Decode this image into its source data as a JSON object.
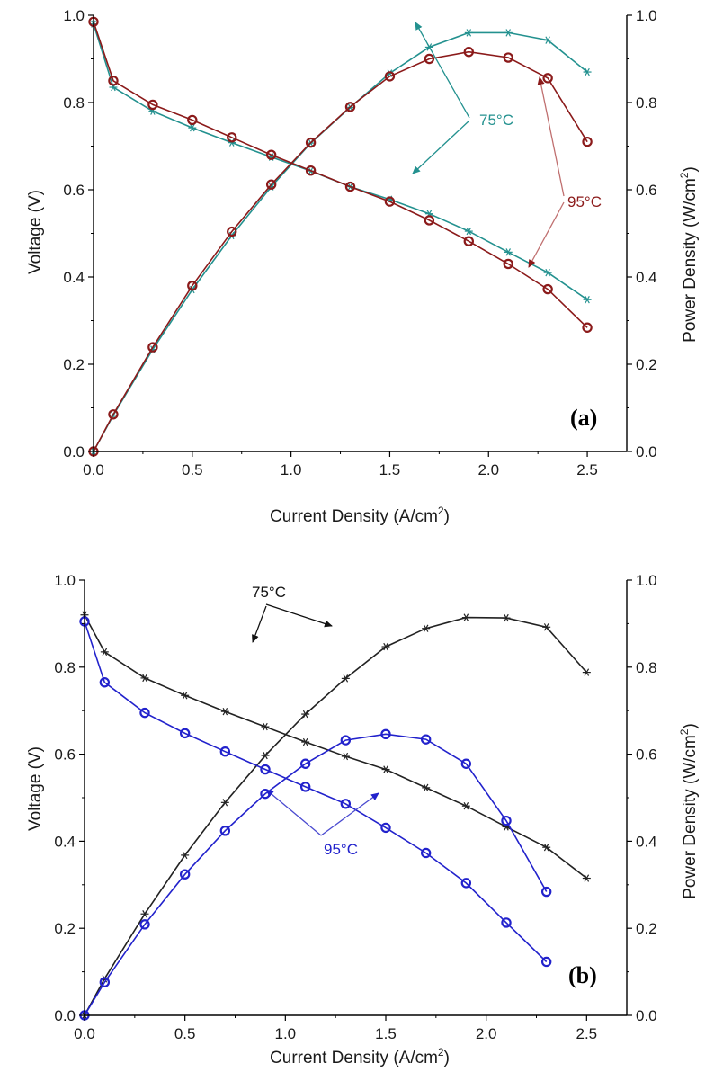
{
  "colors": {
    "a_75": "#23918f",
    "a_95": "#8b1a1a",
    "a_95_arrow": "#c07070",
    "b_75": "#222222",
    "b_95": "#2222cc",
    "b_95_arrow": "#4a4ad0",
    "axis": "#000000"
  },
  "chart_data": [
    {
      "type": "line",
      "panel_label": "(a)",
      "xlabel": "Current Density (A/cm",
      "xlabel_sup": "2",
      "xlabel_end": ")",
      "ylabel": "Voltage (V)",
      "y2label": "Power Density (W/cm",
      "y2label_sup": "2",
      "y2label_end": ")",
      "xlim": [
        0,
        2.7
      ],
      "ylim": [
        0,
        1.0
      ],
      "y2lim": [
        0,
        1.0
      ],
      "xticks": [
        "0.0",
        "0.5",
        "1.0",
        "1.5",
        "2.0",
        "2.5"
      ],
      "yticks": [
        "0.0",
        "0.2",
        "0.4",
        "0.6",
        "0.8",
        "1.0"
      ],
      "y2ticks": [
        "0.0",
        "0.2",
        "0.4",
        "0.6",
        "0.8",
        "1.0"
      ],
      "grid": false,
      "annotations": [
        "75°C",
        "95°C"
      ],
      "series": [
        {
          "temp": "75°C",
          "kind": "voltage",
          "marker": "asterisk",
          "color_key": "a_75",
          "x": [
            0.0,
            0.1,
            0.3,
            0.5,
            0.7,
            0.9,
            1.1,
            1.3,
            1.5,
            1.7,
            1.9,
            2.1,
            2.3,
            2.5
          ],
          "y": [
            0.98,
            0.835,
            0.78,
            0.742,
            0.708,
            0.675,
            0.643,
            0.607,
            0.578,
            0.545,
            0.505,
            0.457,
            0.41,
            0.348
          ]
        },
        {
          "temp": "75°C",
          "kind": "power",
          "marker": "asterisk",
          "color_key": "a_75",
          "x": [
            0.0,
            0.1,
            0.3,
            0.5,
            0.7,
            0.9,
            1.1,
            1.3,
            1.5,
            1.7,
            1.9,
            2.1,
            2.3,
            2.5
          ],
          "y": [
            0.0,
            0.083,
            0.234,
            0.371,
            0.495,
            0.607,
            0.707,
            0.789,
            0.867,
            0.927,
            0.96,
            0.96,
            0.943,
            0.87
          ]
        },
        {
          "temp": "95°C",
          "kind": "voltage",
          "marker": "circle",
          "color_key": "a_95",
          "x": [
            0.0,
            0.1,
            0.3,
            0.5,
            0.7,
            0.9,
            1.1,
            1.3,
            1.5,
            1.7,
            1.9,
            2.1,
            2.3,
            2.5
          ],
          "y": [
            0.985,
            0.85,
            0.795,
            0.76,
            0.72,
            0.68,
            0.644,
            0.607,
            0.573,
            0.53,
            0.482,
            0.43,
            0.372,
            0.284
          ]
        },
        {
          "temp": "95°C",
          "kind": "power",
          "marker": "circle",
          "color_key": "a_95",
          "x": [
            0.0,
            0.1,
            0.3,
            0.5,
            0.7,
            0.9,
            1.1,
            1.3,
            1.5,
            1.7,
            1.9,
            2.1,
            2.3,
            2.5
          ],
          "y": [
            0.0,
            0.085,
            0.239,
            0.38,
            0.504,
            0.612,
            0.708,
            0.79,
            0.86,
            0.9,
            0.916,
            0.903,
            0.856,
            0.71
          ]
        }
      ]
    },
    {
      "type": "line",
      "panel_label": "(b)",
      "xlabel": "Current Density (A/cm",
      "xlabel_sup": "2",
      "xlabel_end": ")",
      "ylabel": "Voltage (V)",
      "y2label": "Power Density (W/cm",
      "y2label_sup": "2",
      "y2label_end": ")",
      "xlim": [
        0,
        2.7
      ],
      "ylim": [
        0,
        1.0
      ],
      "y2lim": [
        0,
        1.0
      ],
      "xticks": [
        "0.0",
        "0.5",
        "1.0",
        "1.5",
        "2.0",
        "2.5"
      ],
      "yticks": [
        "0.0",
        "0.2",
        "0.4",
        "0.6",
        "0.8",
        "1.0"
      ],
      "y2ticks": [
        "0.0",
        "0.2",
        "0.4",
        "0.6",
        "0.8",
        "1.0"
      ],
      "grid": false,
      "annotations": [
        "75°C",
        "95°C"
      ],
      "series": [
        {
          "temp": "75°C",
          "kind": "voltage",
          "marker": "asterisk",
          "color_key": "b_75",
          "x": [
            0.0,
            0.1,
            0.3,
            0.5,
            0.7,
            0.9,
            1.1,
            1.3,
            1.5,
            1.7,
            1.9,
            2.1,
            2.3,
            2.5
          ],
          "y": [
            0.92,
            0.835,
            0.775,
            0.735,
            0.698,
            0.663,
            0.628,
            0.595,
            0.565,
            0.523,
            0.481,
            0.433,
            0.386,
            0.315
          ]
        },
        {
          "temp": "75°C",
          "kind": "power",
          "marker": "asterisk",
          "color_key": "b_75",
          "x": [
            0.0,
            0.1,
            0.3,
            0.5,
            0.7,
            0.9,
            1.1,
            1.3,
            1.5,
            1.7,
            1.9,
            2.1,
            2.3,
            2.5
          ],
          "y": [
            0.0,
            0.084,
            0.233,
            0.368,
            0.489,
            0.597,
            0.692,
            0.774,
            0.847,
            0.889,
            0.914,
            0.913,
            0.892,
            0.788
          ]
        },
        {
          "temp": "95°C",
          "kind": "voltage",
          "marker": "circle",
          "color_key": "b_95",
          "x": [
            0.0,
            0.1,
            0.3,
            0.5,
            0.7,
            0.9,
            1.1,
            1.3,
            1.5,
            1.7,
            1.9,
            2.1,
            2.3
          ],
          "y": [
            0.905,
            0.765,
            0.695,
            0.648,
            0.606,
            0.565,
            0.525,
            0.486,
            0.431,
            0.373,
            0.304,
            0.213,
            0.123
          ]
        },
        {
          "temp": "95°C",
          "kind": "power",
          "marker": "circle",
          "color_key": "b_95",
          "x": [
            0.0,
            0.1,
            0.3,
            0.5,
            0.7,
            0.9,
            1.1,
            1.3,
            1.5,
            1.7,
            1.9,
            2.1,
            2.3
          ],
          "y": [
            0.0,
            0.076,
            0.209,
            0.324,
            0.424,
            0.509,
            0.578,
            0.632,
            0.646,
            0.634,
            0.578,
            0.447,
            0.284
          ]
        }
      ]
    }
  ]
}
